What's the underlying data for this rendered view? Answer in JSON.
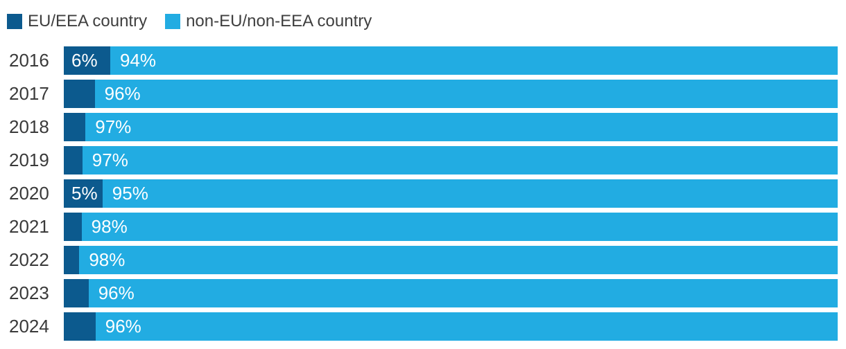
{
  "legend": {
    "items": [
      {
        "label": "EU/EEA country",
        "color": "#0c5a8e"
      },
      {
        "label": "non-EU/non-EEA country",
        "color": "#22ace2"
      }
    ]
  },
  "chart_data": {
    "type": "bar",
    "orientation": "horizontal",
    "stacked": true,
    "title": "",
    "xlabel": "",
    "ylabel": "",
    "categories": [
      "2016",
      "2017",
      "2018",
      "2019",
      "2020",
      "2021",
      "2022",
      "2023",
      "2024"
    ],
    "series": [
      {
        "name": "EU/EEA country",
        "color": "#0c5a8e",
        "values": [
          6,
          4,
          2.8,
          2.4,
          5,
          2.3,
          2,
          3.2,
          4.1
        ],
        "bar_labels": [
          "6%",
          "",
          "",
          "",
          "5%",
          "",
          "",
          "",
          ""
        ]
      },
      {
        "name": "non-EU/non-EEA country",
        "color": "#22ace2",
        "values": [
          94,
          96,
          97,
          97,
          95,
          98,
          98,
          96,
          96
        ],
        "bar_labels": [
          "94%",
          "96%",
          "97%",
          "97%",
          "95%",
          "98%",
          "98%",
          "96%",
          "96%"
        ]
      }
    ],
    "xlim": [
      0,
      100
    ],
    "gridlines": false,
    "axes_visible": false,
    "legend_position": "top-left",
    "bar_label_color": "#ffffff",
    "category_label_color": "#3a3a3a"
  }
}
